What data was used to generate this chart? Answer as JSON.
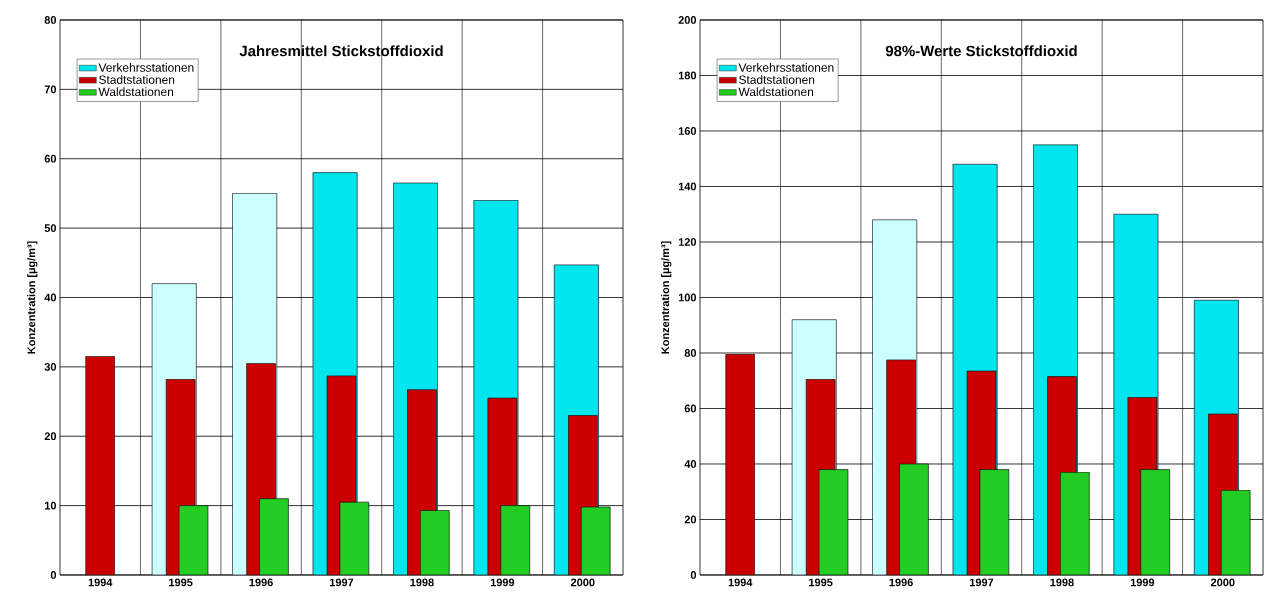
{
  "chart_data": [
    {
      "type": "bar",
      "title": "Jahresmittel Stickstoffdioxid",
      "ylabel": "Konzentration [µg/m³]",
      "categories": [
        "1994",
        "1995",
        "1996",
        "1997",
        "1998",
        "1999",
        "2000"
      ],
      "series": [
        {
          "name": "Verkehrsstationen",
          "color": "#00e5ee",
          "colors": [
            "#00e5ee",
            "#ccffff",
            "#ccffff",
            "#00e5ee",
            "#00e5ee",
            "#00e5ee",
            "#00e5ee"
          ],
          "values": [
            null,
            42,
            55,
            58,
            56.5,
            54,
            44.7
          ]
        },
        {
          "name": "Stadtstationen",
          "color": "#cc0000",
          "values": [
            31.5,
            28.2,
            30.5,
            28.7,
            26.7,
            25.5,
            23
          ]
        },
        {
          "name": "Waldstationen",
          "color": "#22cc22",
          "values": [
            null,
            10,
            11,
            10.5,
            9.3,
            10,
            9.8
          ]
        }
      ],
      "ylim": [
        0,
        80
      ],
      "yticks": [
        0,
        10,
        20,
        30,
        40,
        50,
        60,
        70,
        80
      ],
      "grid": true,
      "legend": "top left"
    },
    {
      "type": "bar",
      "title": "98%-Werte Stickstoffdioxid",
      "ylabel": "Konzentration [µg/m³]",
      "categories": [
        "1994",
        "1995",
        "1996",
        "1997",
        "1998",
        "1999",
        "2000"
      ],
      "series": [
        {
          "name": "Verkehrsstationen",
          "color": "#00e5ee",
          "colors": [
            "#00e5ee",
            "#ccffff",
            "#ccffff",
            "#00e5ee",
            "#00e5ee",
            "#00e5ee",
            "#00e5ee"
          ],
          "values": [
            null,
            92,
            128,
            148,
            155,
            130,
            99
          ]
        },
        {
          "name": "Stadtstationen",
          "color": "#cc0000",
          "values": [
            79.5,
            70.5,
            77.5,
            73.5,
            71.5,
            64,
            58
          ]
        },
        {
          "name": "Waldstationen",
          "color": "#22cc22",
          "values": [
            null,
            38,
            40,
            38,
            37,
            38,
            30.5
          ]
        }
      ],
      "ylim": [
        0,
        200
      ],
      "yticks": [
        0,
        20,
        40,
        60,
        80,
        100,
        120,
        140,
        160,
        180,
        200
      ],
      "grid": true,
      "legend": "top left"
    }
  ]
}
